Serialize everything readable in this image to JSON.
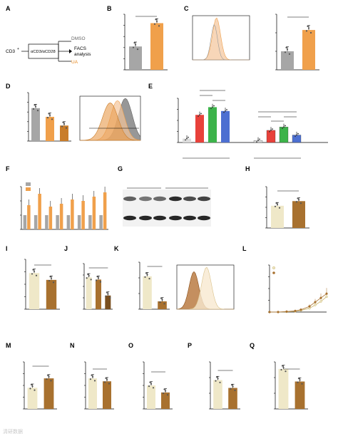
{
  "colors": {
    "dmso": "#a6a6a6",
    "ua": "#f0a04b",
    "ua_dark": "#c97d2a",
    "red": "#e8413a",
    "green": "#3cb34a",
    "blue": "#4c6fd1",
    "light": "#efe8c8",
    "brown": "#a8712f",
    "peach": "#f4c59a",
    "flow_gray": "#8c8c8c"
  },
  "panel_letters": [
    "A",
    "B",
    "C",
    "D",
    "E",
    "F",
    "G",
    "H",
    "I",
    "J",
    "K",
    "L",
    "M",
    "N",
    "O",
    "P",
    "Q"
  ],
  "panelA": {
    "cell": "CD3",
    "cell_sup": "+",
    "stim": "αCD3/αCD28",
    "dmso": "DMSO",
    "ua": "UA",
    "facs": "FACS",
    "analysis": "analysis"
  },
  "panelB": {
    "title": "TMRM",
    "title_sup": "Lo",
    "ylabel": "% of cells",
    "ticks": [
      "45",
      "50",
      "55",
      "60",
      "65",
      "70"
    ],
    "cats": [
      "DMSO",
      "UA"
    ],
    "values": [
      55.5,
      66
    ],
    "ylim": [
      45,
      70
    ],
    "sig": "*"
  },
  "panelC": {
    "flow_labels": {
      "dmso": "DMSO",
      "ua": "UA"
    },
    "xlabel": "LysoTracker",
    "xticks": [
      "-10³",
      "0",
      "10³",
      "10⁴",
      "10⁵"
    ],
    "bar_title": "LysoTracker",
    "ylabel": "MFI relative to DMSO",
    "ticks": [
      "0",
      "1",
      "2",
      "3"
    ],
    "cats": [
      "DMSO",
      "UA"
    ],
    "values": [
      1.0,
      2.15
    ],
    "ylim": [
      0,
      3
    ],
    "sig": "**"
  },
  "panelD": {
    "ylabel": "% of CD8⁺ cells",
    "ticks": [
      "0",
      "20",
      "40",
      "60",
      "80",
      "100"
    ],
    "cats": [
      "DMSO",
      "UA 25µM",
      "UA 50µM"
    ],
    "values": [
      68,
      50,
      32
    ],
    "ylim": [
      0,
      100
    ],
    "sigs": [
      "****",
      "**",
      "***"
    ],
    "legend": [
      "DMSO",
      "UA 25µM",
      "UA 50µM"
    ],
    "lo": "Lo",
    "hi": "Hi",
    "xlabel": "MitoTracker",
    "xticks": [
      "-10³",
      "0",
      "10³",
      "10⁴",
      "10⁵"
    ]
  },
  "panelE": {
    "ylabel": "MitoTracker MFI",
    "ticks": [
      "0",
      "2000",
      "4000",
      "6000",
      "8000"
    ],
    "cats": [
      "Tₙ",
      "TₛCM",
      "TCM",
      "TₑFF",
      "Tₙ",
      "TₛCM",
      "TCM",
      "TₑFF"
    ],
    "cat_labels": [
      "Tₙ",
      "Tₛᴄₘ",
      "Tᴄₘ",
      "Tᴇᶠᶠ",
      "Tₙ",
      "Tₛᴄₘ",
      "Tᴄₘ",
      "Tᴇᶠᶠ"
    ],
    "values": [
      700,
      5000,
      6400,
      5700,
      350,
      2200,
      2800,
      1350
    ],
    "ylim": [
      0,
      8000
    ],
    "groups": [
      "DMSO",
      "UA"
    ],
    "sigs": [
      "ns",
      "**",
      "*",
      "ns",
      "ns",
      "****",
      "***"
    ]
  },
  "panelF": {
    "ylabel": "Relative expression",
    "ticks": [
      "0",
      "1",
      "2",
      "3"
    ],
    "legend": [
      "DMSO",
      "UA"
    ],
    "genes": [
      "Atg5",
      "Atg7",
      "Atg12",
      "Pik3c3",
      "p62",
      "Bnip3",
      "Lamp2",
      "Pink1"
    ],
    "dmso": [
      1,
      1,
      1,
      1,
      1,
      1,
      1,
      1
    ],
    "ua": [
      1.7,
      2.5,
      1.6,
      1.8,
      2.1,
      2.0,
      2.3,
      2.6
    ],
    "ylim": [
      0,
      3
    ],
    "sigs": [
      "*",
      "**",
      "*",
      "*",
      "*",
      "*",
      "**",
      "*"
    ]
  },
  "panelG": {
    "groups": [
      "DMSO",
      "UA"
    ],
    "bands": [
      "Parkin",
      "β-Actin"
    ],
    "quant": [
      "0,80",
      "0,67",
      "0,72",
      "1,47",
      "1,00",
      "1,13"
    ]
  },
  "panelH": {
    "title": "LysoTracker",
    "title_sup": "Hi",
    "ylabel": "% of CD8⁺ cells",
    "ticks": [
      "0",
      "20",
      "40",
      "60",
      "80"
    ],
    "cats": [
      "DMSO",
      "UA"
    ],
    "values": [
      43,
      52
    ],
    "ylim": [
      0,
      80
    ],
    "sig": "ns"
  },
  "panelI": {
    "title": "MitoTracker",
    "title_sup": "Hi",
    "ylabel": "% of CD8⁺ cells",
    "ticks": [
      "0",
      "20",
      "40",
      "60",
      "80"
    ],
    "cats": [
      "DMSO",
      "UA"
    ],
    "values": [
      58,
      47
    ],
    "ylim": [
      0,
      80
    ],
    "sig": "ns"
  },
  "panelJ": {
    "title": "T",
    "title_sub": "SCM",
    "ylabel": "% of CD8⁺ cells",
    "ticks": [
      "0",
      "5",
      "10",
      "15",
      "20"
    ],
    "cats": [
      "DMSO",
      "UA 25µM",
      "UA 50µM"
    ],
    "values": [
      14,
      13,
      6
    ],
    "ylim": [
      0,
      20
    ],
    "sig": "***"
  },
  "panelK": {
    "title": "TCF1 in CD62L⁺CD44⁻",
    "ylabel": "MFI",
    "ticks": [
      "15000",
      "20000",
      "25000",
      "30000"
    ],
    "cats": [
      "DMSO",
      "UA"
    ],
    "values": [
      25500,
      17500
    ],
    "ylim": [
      15000,
      30000
    ],
    "sig": "***",
    "flow_labels": {
      "ua": "UA 50µM",
      "dmso": "DMSO"
    }
  },
  "panelL": {
    "title": "Pink1",
    "title_sup": "-/-",
    "title_rest": " APTK s.c.",
    "ylabel": "tumor size [mm³]",
    "ticks": [
      "0",
      "500",
      "1000",
      "1500",
      "2000"
    ],
    "xlabel": "days post tumor injection",
    "x": [
      0,
      3,
      6,
      9,
      11,
      14,
      16,
      18,
      20
    ],
    "ctrl": [
      0,
      0,
      10,
      30,
      70,
      160,
      300,
      450,
      650
    ],
    "ua": [
      0,
      0,
      20,
      50,
      100,
      240,
      420,
      600,
      780
    ],
    "ylim": [
      0,
      2000
    ],
    "legend": [
      "ctrl. diet",
      "UA diet"
    ],
    "sig": "n.s."
  },
  "panelM": {
    "title": "TCF1",
    "title_sup": "Hi",
    "ylabel": "% of CD8⁺ cells",
    "ticks": [
      "0",
      "10",
      "20",
      "30",
      "40"
    ],
    "cats": [
      "ctrl. diet",
      "UA diet"
    ],
    "values": [
      18,
      26
    ],
    "ylim": [
      0,
      40
    ],
    "sig": "ns"
  },
  "panelN": {
    "title": "PD1",
    "title_sup": "Hi",
    "ylabel": "% of CD8⁺ cells",
    "ticks": [
      "0",
      "20",
      "40",
      "60",
      "80"
    ],
    "cats": [
      "ctrl. diet",
      "UA diet"
    ],
    "values": [
      52,
      47
    ],
    "ylim": [
      0,
      80
    ],
    "sig": "ns"
  },
  "panelO": {
    "title": "Tim3",
    "title_sup": "Hi",
    "ylabel": "% of CD8⁺ cells",
    "ticks": [
      "0",
      "20",
      "40",
      "60",
      "80"
    ],
    "cats": [
      "ctrl. diet",
      "UA diet"
    ],
    "values": [
      40,
      28
    ],
    "ylim": [
      0,
      80
    ],
    "sig": "ns"
  },
  "panelP": {
    "title": "IFNγ",
    "ylabel": "MFI on CD8⁺ cells",
    "ticks": [
      "0",
      "5000",
      "10000",
      "15000"
    ],
    "cats": [
      "ctrl. diet",
      "UA diet"
    ],
    "values": [
      9200,
      6700
    ],
    "ylim": [
      0,
      15000
    ],
    "sig": "ns"
  },
  "panelQ": {
    "title": "TNFα",
    "ylabel": "MFI on CD8⁺ cells",
    "ticks": [
      "0",
      "10000",
      "20000",
      "30000"
    ],
    "cats": [
      "ctrl. diet",
      "UA diet"
    ],
    "values": [
      25500,
      17500
    ],
    "ylim": [
      0,
      30000
    ],
    "sig": "ns"
  },
  "watermark": "清研数据"
}
